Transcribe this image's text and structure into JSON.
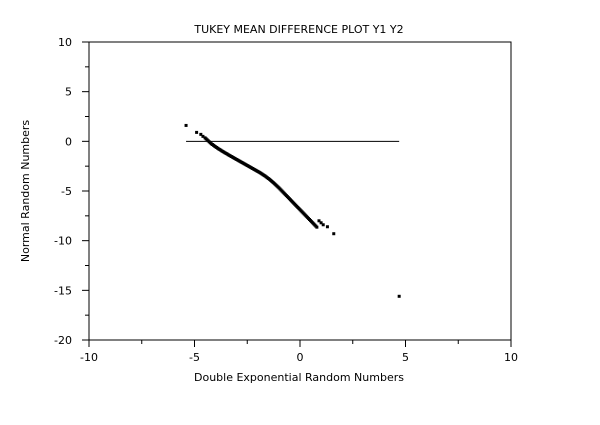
{
  "chart_data": {
    "type": "scatter",
    "title": "TUKEY MEAN DIFFERENCE PLOT Y1 Y2",
    "xlabel": "Double Exponential Random Numbers",
    "ylabel": "Normal Random Numbers",
    "xlim": [
      -10,
      10
    ],
    "ylim": [
      -20,
      10
    ],
    "x_ticks": [
      -10,
      -5,
      0,
      5,
      10
    ],
    "y_ticks": [
      -20,
      -15,
      -10,
      -5,
      0,
      5,
      10
    ],
    "x_tick_labels": [
      "-10",
      "-5",
      "0",
      "5",
      "10"
    ],
    "y_tick_labels": [
      "-20",
      "-15",
      "-10",
      "-5",
      "0",
      "5",
      "10"
    ],
    "grid": false,
    "reference_line": {
      "x": [
        -5.4,
        4.7
      ],
      "y": [
        0,
        0
      ]
    },
    "series": [
      {
        "x": [
          -5.4,
          -4.9,
          -4.7,
          -4.6,
          -4.5,
          -4.45,
          -4.4,
          -4.35,
          -4.3,
          -4.25,
          -4.2,
          -4.15,
          -4.1,
          -4.05,
          -4.0,
          -3.95,
          -3.9,
          -3.85,
          -3.8,
          -3.75,
          -3.7,
          -3.65,
          -3.6,
          -3.55,
          -3.5,
          -3.45,
          -3.4,
          -3.35,
          -3.3,
          -3.25,
          -3.2,
          -3.15,
          -3.1,
          -3.05,
          -3.0,
          -2.95,
          -2.9,
          -2.85,
          -2.8,
          -2.75,
          -2.7,
          -2.65,
          -2.6,
          -2.55,
          -2.5,
          -2.45,
          -2.4,
          -2.35,
          -2.3,
          -2.25,
          -2.2,
          -2.15,
          -2.1,
          -2.05,
          -2.0,
          -1.95,
          -1.9,
          -1.85,
          -1.8,
          -1.75,
          -1.7,
          -1.65,
          -1.6,
          -1.55,
          -1.5,
          -1.45,
          -1.4,
          -1.35,
          -1.3,
          -1.25,
          -1.2,
          -1.15,
          -1.1,
          -1.05,
          -1.0,
          -0.95,
          -0.9,
          -0.85,
          -0.8,
          -0.75,
          -0.7,
          -0.65,
          -0.6,
          -0.55,
          -0.5,
          -0.45,
          -0.4,
          -0.35,
          -0.3,
          -0.25,
          -0.2,
          -0.15,
          -0.1,
          -0.05,
          0.0,
          0.05,
          0.1,
          0.15,
          0.2,
          0.25,
          0.3,
          0.35,
          0.4,
          0.45,
          0.5,
          0.55,
          0.6,
          0.65,
          0.7,
          0.75,
          0.8,
          0.9,
          1.0,
          1.1,
          1.3,
          1.6,
          4.7
        ],
        "y": [
          1.6,
          0.9,
          0.7,
          0.5,
          0.35,
          0.25,
          0.15,
          0.05,
          -0.05,
          -0.15,
          -0.25,
          -0.32,
          -0.4,
          -0.48,
          -0.55,
          -0.62,
          -0.7,
          -0.77,
          -0.83,
          -0.9,
          -0.97,
          -1.03,
          -1.1,
          -1.16,
          -1.22,
          -1.28,
          -1.35,
          -1.41,
          -1.47,
          -1.53,
          -1.59,
          -1.65,
          -1.71,
          -1.77,
          -1.83,
          -1.89,
          -1.95,
          -2.01,
          -2.07,
          -2.13,
          -2.19,
          -2.25,
          -2.31,
          -2.37,
          -2.43,
          -2.49,
          -2.55,
          -2.61,
          -2.67,
          -2.73,
          -2.79,
          -2.85,
          -2.91,
          -2.97,
          -3.03,
          -3.09,
          -3.15,
          -3.22,
          -3.29,
          -3.36,
          -3.43,
          -3.5,
          -3.58,
          -3.66,
          -3.74,
          -3.82,
          -3.91,
          -4.0,
          -4.09,
          -4.18,
          -4.28,
          -4.38,
          -4.48,
          -4.58,
          -4.68,
          -4.79,
          -4.9,
          -5.01,
          -5.12,
          -5.23,
          -5.34,
          -5.45,
          -5.56,
          -5.67,
          -5.78,
          -5.89,
          -6.0,
          -6.11,
          -6.22,
          -6.33,
          -6.44,
          -6.55,
          -6.66,
          -6.77,
          -6.88,
          -6.99,
          -7.1,
          -7.21,
          -7.32,
          -7.43,
          -7.54,
          -7.65,
          -7.76,
          -7.87,
          -7.98,
          -8.09,
          -8.2,
          -8.31,
          -8.42,
          -8.53,
          -8.64,
          -8.0,
          -8.2,
          -8.4,
          -8.6,
          -9.3,
          -15.6
        ]
      }
    ]
  }
}
